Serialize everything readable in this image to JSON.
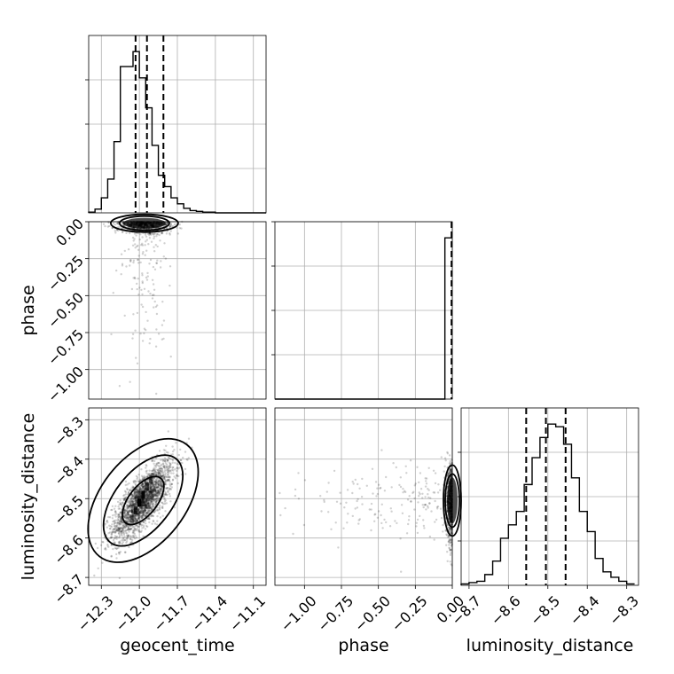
{
  "chart_data": {
    "type": "corner",
    "grid": true,
    "parameters": [
      "geocent_time",
      "phase",
      "luminosity_distance"
    ],
    "axis_labels": {
      "geocent_time": "geocent_time",
      "phase": "phase",
      "luminosity_distance": "luminosity_distance"
    },
    "ranges": {
      "geocent_time": [
        -12.4,
        -11.0
      ],
      "phase": [
        -1.2,
        0.0
      ],
      "luminosity_distance": [
        -8.72,
        -8.27
      ]
    },
    "ticks": {
      "geocent_time": [
        "−12.3",
        "−12.0",
        "−11.7",
        "−11.4",
        "−11.1"
      ],
      "geocent_time_values": [
        -12.3,
        -12.0,
        -11.7,
        -11.4,
        -11.1
      ],
      "phase": [
        "−1.00",
        "−0.75",
        "−0.50",
        "−0.25",
        "0.00"
      ],
      "phase_values": [
        -1.0,
        -0.75,
        -0.5,
        -0.25,
        0.0
      ],
      "luminosity_distance": [
        "−8.7",
        "−8.6",
        "−8.5",
        "−8.4",
        "−8.3"
      ],
      "luminosity_distance_values": [
        -8.7,
        -8.6,
        -8.5,
        -8.4,
        -8.3
      ]
    },
    "quantiles": {
      "geocent_time": [
        -12.03,
        -11.94,
        -11.81
      ],
      "phase": [
        -0.005
      ],
      "luminosity_distance": [
        -8.555,
        -8.505,
        -8.455
      ]
    },
    "histograms": {
      "geocent_time": {
        "edges": [
          -12.4,
          -12.35,
          -12.3,
          -12.25,
          -12.2,
          -12.15,
          -12.1,
          -12.05,
          -12.0,
          -11.95,
          -11.9,
          -11.85,
          -11.8,
          -11.75,
          -11.7,
          -11.65,
          -11.6,
          -11.55,
          -11.5,
          -11.45,
          -11.4,
          -11.35,
          -11.3,
          -11.25,
          -11.2,
          -11.15,
          -11.1,
          -11.05,
          -11.0
        ],
        "counts": [
          1,
          5,
          20,
          45,
          95,
          195,
          195,
          215,
          180,
          140,
          90,
          50,
          35,
          20,
          12,
          6,
          3,
          2,
          1,
          1,
          0,
          0,
          0,
          0,
          0,
          0,
          0,
          0
        ]
      },
      "phase": {
        "edges": [
          -1.2,
          -1.15,
          -1.1,
          -1.05,
          -1.0,
          -0.95,
          -0.9,
          -0.85,
          -0.8,
          -0.75,
          -0.7,
          -0.65,
          -0.6,
          -0.55,
          -0.5,
          -0.45,
          -0.4,
          -0.35,
          -0.3,
          -0.25,
          -0.2,
          -0.15,
          -0.1,
          -0.05,
          0.0
        ],
        "counts": [
          0,
          0,
          0,
          0,
          0,
          0,
          0,
          0,
          0,
          0,
          0,
          0,
          0,
          0,
          0,
          0,
          0,
          0,
          0,
          0,
          0,
          0,
          0,
          100
        ]
      },
      "luminosity_distance": {
        "edges": [
          -8.72,
          -8.7,
          -8.68,
          -8.66,
          -8.64,
          -8.62,
          -8.6,
          -8.58,
          -8.56,
          -8.54,
          -8.52,
          -8.5,
          -8.48,
          -8.46,
          -8.44,
          -8.42,
          -8.4,
          -8.38,
          -8.36,
          -8.34,
          -8.32,
          -8.3,
          -8.28
        ],
        "counts": [
          1,
          2,
          3,
          8,
          18,
          35,
          45,
          55,
          75,
          95,
          110,
          120,
          118,
          105,
          80,
          55,
          40,
          20,
          10,
          6,
          3,
          1
        ]
      }
    },
    "posterior_2d": {
      "geocent_time_vs_luminosity_distance": {
        "correlation": 0.75,
        "mean": [
          -11.97,
          -8.505
        ],
        "std": [
          0.12,
          0.05
        ]
      },
      "geocent_time_vs_phase": {
        "mean": [
          -11.96,
          -0.01
        ]
      },
      "phase_vs_luminosity_distance": {
        "mean": [
          -0.01,
          -8.505
        ]
      }
    }
  }
}
